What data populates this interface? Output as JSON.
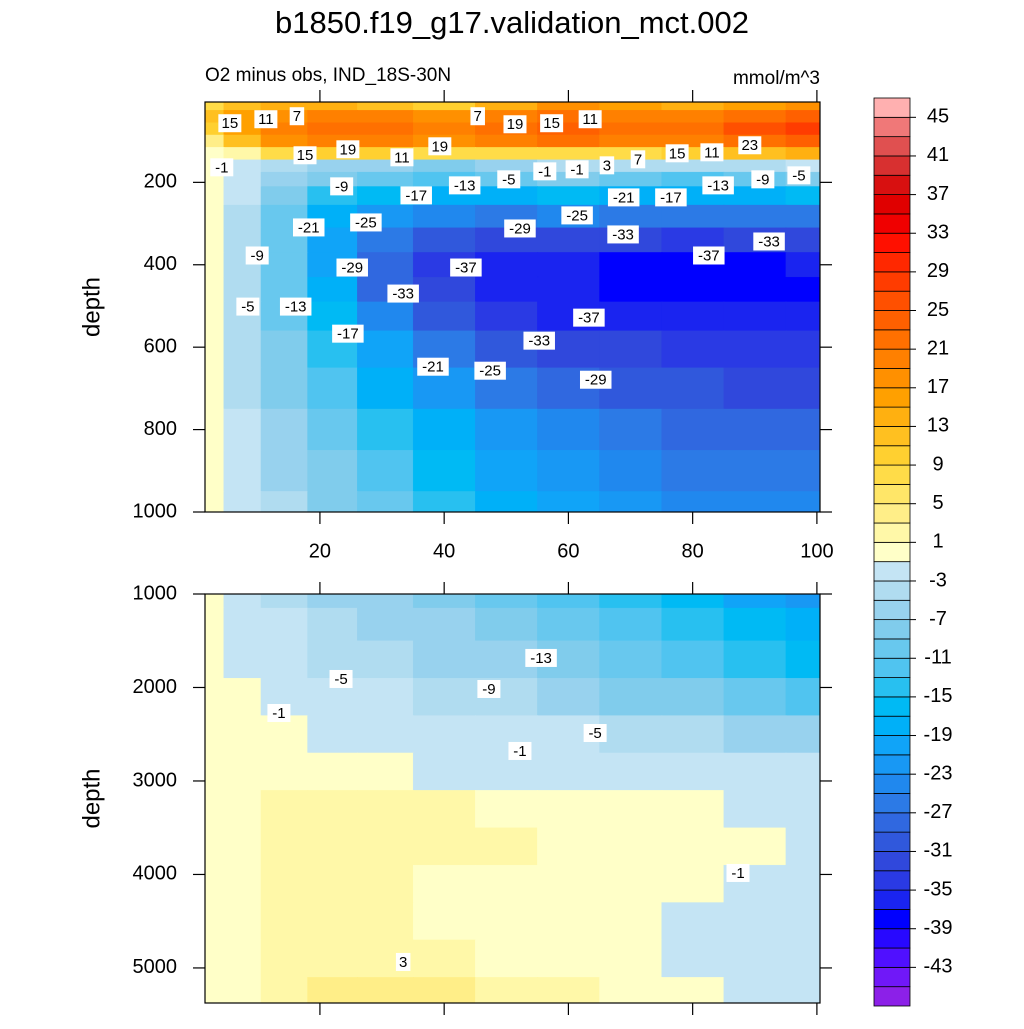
{
  "chart_data": {
    "type": "contour",
    "title": "b1850.f19_g17.validation_mct.002",
    "subtitle": "O2 minus obs, IND_18S-30N",
    "units": "mmol/m^3",
    "colorbar": {
      "clim": [
        -47,
        47
      ],
      "ticks": [
        45,
        41,
        37,
        33,
        29,
        25,
        21,
        17,
        13,
        9,
        5,
        1,
        -3,
        -7,
        -11,
        -15,
        -19,
        -23,
        -27,
        -31,
        -35,
        -39,
        -43
      ],
      "colors": [
        "#8c20e8",
        "#7018f8",
        "#5010ff",
        "#2808ff",
        "#0000ff",
        "#1a24f0",
        "#2a3ae4",
        "#3048dc",
        "#3058dc",
        "#3068e0",
        "#2c7ae6",
        "#2088ee",
        "#1898f4",
        "#10a4f8",
        "#00b0f8",
        "#00baf4",
        "#28c0f0",
        "#50c4f0",
        "#68c8ee",
        "#80ccec",
        "#98d2ee",
        "#b0dcf0",
        "#c4e4f4",
        "#ffffc8",
        "#fff8a8",
        "#ffee88",
        "#ffe668",
        "#ffdc48",
        "#ffd030",
        "#ffc020",
        "#ffb010",
        "#ffa000",
        "#ff9000",
        "#ff8000",
        "#ff7000",
        "#ff6000",
        "#ff5000",
        "#ff3c00",
        "#ff2800",
        "#ff1000",
        "#f00000",
        "#e00000",
        "#d81010",
        "#d83030",
        "#e05050",
        "#f07878",
        "#ffb0b0"
      ]
    },
    "panels": [
      {
        "y_label": "depth",
        "xlim": [
          1.5,
          100.5
        ],
        "ylim": [
          1000,
          5
        ],
        "xticks": [
          20,
          40,
          60,
          80,
          100
        ],
        "xtick_labels": true,
        "yticks": [
          200,
          400,
          600,
          800,
          1000
        ],
        "x": [
          2,
          7,
          14,
          22,
          30,
          40,
          50,
          60,
          70,
          80,
          90,
          100
        ],
        "y": [
          10,
          40,
          70,
          100,
          130,
          160,
          190,
          230,
          280,
          340,
          400,
          460,
          520,
          600,
          700,
          800,
          900,
          1000
        ],
        "z": [
          [
            8,
            12,
            14,
            14,
            12,
            10,
            14,
            18,
            16,
            14,
            16,
            18
          ],
          [
            12,
            16,
            18,
            20,
            20,
            18,
            20,
            22,
            20,
            20,
            22,
            24
          ],
          [
            10,
            16,
            20,
            22,
            22,
            20,
            22,
            24,
            22,
            22,
            26,
            28
          ],
          [
            4,
            12,
            18,
            20,
            20,
            18,
            20,
            22,
            20,
            20,
            22,
            24
          ],
          [
            0,
            2,
            8,
            10,
            10,
            8,
            8,
            8,
            8,
            10,
            12,
            14
          ],
          [
            0,
            -2,
            -4,
            -6,
            -6,
            -8,
            -6,
            -4,
            -4,
            -4,
            -4,
            -2
          ],
          [
            0,
            -2,
            -6,
            -8,
            -10,
            -12,
            -10,
            -8,
            -10,
            -12,
            -10,
            -8
          ],
          [
            0,
            -2,
            -8,
            -14,
            -16,
            -18,
            -18,
            -16,
            -18,
            -18,
            -18,
            -16
          ],
          [
            0,
            -4,
            -10,
            -18,
            -22,
            -24,
            -26,
            -24,
            -26,
            -26,
            -26,
            -26
          ],
          [
            0,
            -4,
            -10,
            -20,
            -26,
            -30,
            -32,
            -32,
            -32,
            -34,
            -32,
            -32
          ],
          [
            0,
            -4,
            -10,
            -20,
            -28,
            -34,
            -36,
            -36,
            -38,
            -38,
            -38,
            -36
          ],
          [
            0,
            -4,
            -10,
            -18,
            -28,
            -32,
            -36,
            -36,
            -38,
            -38,
            -38,
            -38
          ],
          [
            0,
            -4,
            -10,
            -16,
            -24,
            -30,
            -34,
            -36,
            -36,
            -36,
            -36,
            -36
          ],
          [
            0,
            -4,
            -8,
            -14,
            -20,
            -26,
            -30,
            -32,
            -32,
            -34,
            -34,
            -34
          ],
          [
            0,
            -4,
            -8,
            -12,
            -18,
            -22,
            -26,
            -28,
            -30,
            -30,
            -32,
            -32
          ],
          [
            0,
            -2,
            -6,
            -10,
            -14,
            -18,
            -22,
            -24,
            -26,
            -28,
            -28,
            -28
          ],
          [
            0,
            -2,
            -6,
            -8,
            -12,
            -16,
            -20,
            -22,
            -24,
            -26,
            -26,
            -26
          ],
          [
            0,
            -2,
            -4,
            -8,
            -10,
            -14,
            -18,
            -20,
            -22,
            -24,
            -24,
            -24
          ]
        ],
        "contour_labels": {
          "x": [
            5.5,
            11.3,
            16.3,
            45.4,
            51.4,
            57.3,
            63.5,
            17.6,
            24.5,
            33.2,
            39.3,
            4.2,
            23.5,
            35.5,
            43.3,
            50.4,
            56.2,
            61.4,
            66.2,
            71.2,
            77.5,
            83.1,
            89.2,
            68.9,
            76.5,
            84.1,
            91.3,
            97.1,
            18.2,
            27.4,
            52.2,
            61.4,
            68.8,
            92.3,
            9.9,
            25.2,
            43.5,
            82.6,
            8.4,
            16.1,
            33.4,
            24.5,
            63.3,
            55.3,
            38.2,
            47.4,
            64.4
          ],
          "y": [
            56.5,
            46.8,
            39.5,
            39.5,
            59,
            56.5,
            46.8,
            134.3,
            119.8,
            139.2,
            112.5,
            163.5,
            209.7,
            231.6,
            207.3,
            192.7,
            173.3,
            168.4,
            158.7,
            144.1,
            129.5,
            127.1,
            110,
            236.5,
            236.5,
            207.3,
            192.7,
            183,
            309.4,
            297.3,
            311.9,
            280.2,
            326.4,
            343.5,
            377.5,
            406.7,
            406.7,
            377.5,
            501.5,
            501.5,
            469.9,
            567.2,
            528.3,
            584.2,
            647.4,
            657.1,
            679
          ],
          "values": [
            15,
            11,
            7,
            7,
            19,
            15,
            11,
            15,
            19,
            11,
            19,
            -1,
            -9,
            -17,
            -13,
            -5,
            -1,
            -1,
            3,
            7,
            15,
            11,
            23,
            -21,
            -17,
            -13,
            -9,
            -5,
            -21,
            -25,
            -29,
            -25,
            -33,
            -33,
            -9,
            -29,
            -37,
            -37,
            -5,
            -13,
            -33,
            -17,
            -37,
            -33,
            -21,
            -25,
            -29
          ]
        }
      },
      {
        "y_label": "depth",
        "xlim": [
          1.5,
          100.5
        ],
        "ylim": [
          5375,
          1000
        ],
        "xticks": [
          20,
          40,
          60,
          80,
          100
        ],
        "xtick_labels": false,
        "yticks": [
          1000,
          2000,
          3000,
          4000,
          5000
        ],
        "x": [
          2,
          7,
          14,
          22,
          30,
          40,
          50,
          60,
          70,
          80,
          90,
          100
        ],
        "y": [
          1000,
          1300,
          1700,
          2100,
          2500,
          2900,
          3300,
          3700,
          4100,
          4500,
          4900,
          5300
        ],
        "z": [
          [
            0,
            -2,
            -4,
            -6,
            -6,
            -8,
            -10,
            -12,
            -14,
            -16,
            -20,
            -22
          ],
          [
            0,
            -2,
            -2,
            -4,
            -6,
            -6,
            -8,
            -10,
            -12,
            -14,
            -16,
            -18
          ],
          [
            0,
            -2,
            -2,
            -4,
            -4,
            -6,
            -6,
            -8,
            -10,
            -12,
            -14,
            -16
          ],
          [
            0,
            0,
            -2,
            -2,
            -2,
            -4,
            -4,
            -6,
            -8,
            -8,
            -10,
            -12
          ],
          [
            0,
            0,
            0,
            -2,
            -2,
            -2,
            -2,
            -2,
            -4,
            -4,
            -6,
            -6
          ],
          [
            0,
            0,
            0,
            0,
            0,
            -2,
            -2,
            -2,
            -2,
            -2,
            -2,
            -2
          ],
          [
            0,
            0,
            2,
            2,
            2,
            2,
            0,
            0,
            0,
            0,
            -2,
            -2
          ],
          [
            0,
            0,
            2,
            2,
            2,
            2,
            2,
            0,
            0,
            0,
            0,
            -2
          ],
          [
            0,
            0,
            2,
            2,
            2,
            0,
            0,
            0,
            0,
            0,
            -2,
            -2
          ],
          [
            0,
            0,
            2,
            2,
            2,
            0,
            0,
            0,
            0,
            -2,
            -2,
            -2
          ],
          [
            0,
            0,
            2,
            2,
            2,
            2,
            0,
            0,
            0,
            -2,
            -2,
            -2
          ],
          [
            0,
            0,
            2,
            4,
            4,
            4,
            2,
            2,
            0,
            0,
            -2,
            -2
          ]
        ],
        "contour_labels": {
          "x": [
            23.4,
            47.2,
            55.6,
            13.4,
            64.3,
            52.2,
            87.3,
            33.4
          ],
          "y": [
            1909,
            2016,
            1684,
            2273,
            2487,
            2679,
            3984,
            4936
          ],
          "values": [
            -5,
            -9,
            -13,
            -1,
            -5,
            -1,
            -1,
            3
          ]
        }
      }
    ]
  }
}
